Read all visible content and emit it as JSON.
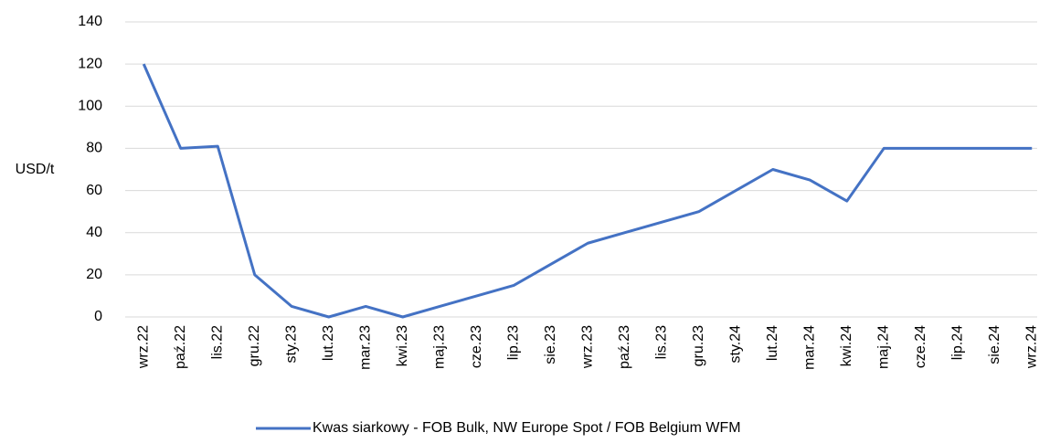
{
  "chart_data": {
    "type": "line",
    "y_label": "USD/t",
    "categories": [
      "wrz.22",
      "paź.22",
      "lis.22",
      "gru.22",
      "sty.23",
      "lut.23",
      "mar.23",
      "kwi.23",
      "maj.23",
      "cze.23",
      "lip.23",
      "sie.23",
      "wrz.23",
      "paź.23",
      "lis.23",
      "gru.23",
      "sty.24",
      "lut.24",
      "mar.24",
      "kwi.24",
      "maj.24",
      "cze.24",
      "lip.24",
      "sie.24",
      "wrz.24"
    ],
    "series": [
      {
        "name": "Kwas siarkowy - FOB Bulk, NW Europe Spot  / FOB Belgium WFM",
        "color": "#4472c4",
        "values": [
          120,
          80,
          81,
          20,
          5,
          0,
          5,
          0,
          5,
          10,
          15,
          25,
          35,
          40,
          45,
          50,
          60,
          70,
          65,
          55,
          80,
          80,
          80,
          80,
          80
        ]
      }
    ],
    "ylim": [
      0,
      140
    ],
    "yticks": [
      0,
      20,
      40,
      60,
      80,
      100,
      120,
      140
    ],
    "grid": true,
    "legend": "bottom"
  }
}
